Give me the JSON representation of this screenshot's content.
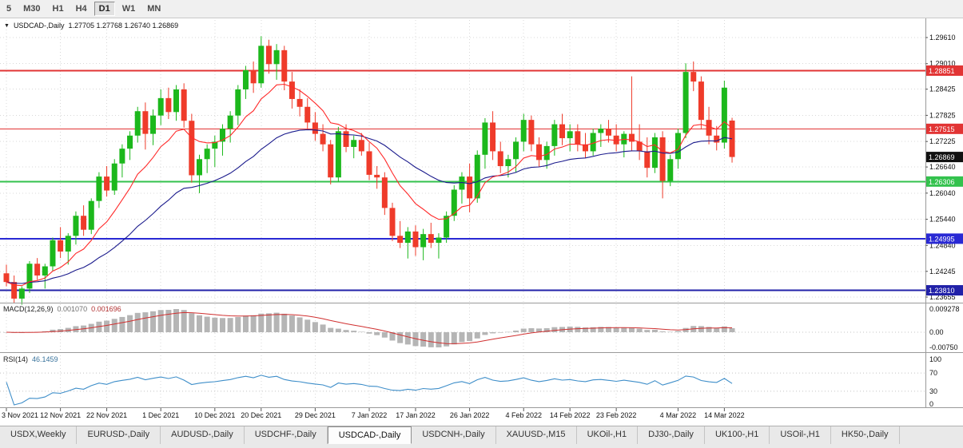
{
  "toolbar": {
    "timeframes": [
      {
        "label": "5",
        "active": false
      },
      {
        "label": "M30",
        "active": false
      },
      {
        "label": "H1",
        "active": false
      },
      {
        "label": "H4",
        "active": false
      },
      {
        "label": "D1",
        "active": true
      },
      {
        "label": "W1",
        "active": false
      },
      {
        "label": "MN",
        "active": false
      }
    ]
  },
  "chart": {
    "title": "USDCAD-,Daily",
    "ohlc_text": "1.27705 1.27768 1.26740 1.26869",
    "hlines": [
      {
        "label": "1.28851",
        "price": 1.28851,
        "color": "#e23434",
        "width": 2
      },
      {
        "label": "1.27515",
        "price": 1.27515,
        "color": "#e23434",
        "width": 1
      },
      {
        "label": "1.26306",
        "price": 1.26306,
        "color": "#33c24d",
        "width": 2
      },
      {
        "label": "1.24995",
        "price": 1.24995,
        "color": "#2929d4",
        "width": 2
      },
      {
        "label": "1.23810",
        "price": 1.2381,
        "color": "#2121a8",
        "width": 2
      }
    ],
    "current_price": {
      "label": "1.26869",
      "price": 1.26869,
      "color": "#111111"
    }
  },
  "macd": {
    "label": "MACD(12,26,9)",
    "value_main": "0.001070",
    "value_signal": "0.001696",
    "axis_max": "0.009278",
    "axis_zero": "0.00",
    "axis_min": "-0.00750"
  },
  "rsi": {
    "label": "RSI(14)",
    "value": "46.1459",
    "axis": [
      "100",
      "70",
      "30",
      "0"
    ],
    "levels": [
      70,
      30
    ]
  },
  "tabs": [
    {
      "label": "USDX,Weekly",
      "active": false
    },
    {
      "label": "EURUSD-,Daily",
      "active": false
    },
    {
      "label": "AUDUSD-,Daily",
      "active": false
    },
    {
      "label": "USDCHF-,Daily",
      "active": false
    },
    {
      "label": "USDCAD-,Daily",
      "active": true
    },
    {
      "label": "USDCNH-,Daily",
      "active": false
    },
    {
      "label": "XAUUSD-,M15",
      "active": false
    },
    {
      "label": "UKOil-,H1",
      "active": false
    },
    {
      "label": "DJ30-,Daily",
      "active": false
    },
    {
      "label": "UK100-,H1",
      "active": false
    },
    {
      "label": "USOil-,H1",
      "active": false
    },
    {
      "label": "HK50-,Daily",
      "active": false
    }
  ],
  "chart_data": {
    "type": "candlestick",
    "symbol": "USDCAD-",
    "timeframe": "Daily",
    "title": "USDCAD-,Daily",
    "last_ohlc": {
      "open": 1.27705,
      "high": 1.27768,
      "low": 1.2674,
      "close": 1.26869
    },
    "y_range": [
      1.23655,
      1.2961
    ],
    "y_axis_ticks": [
      "1.29610",
      "1.29010",
      "1.28425",
      "1.27825",
      "1.27225",
      "1.26640",
      "1.26040",
      "1.25440",
      "1.24840",
      "1.24245",
      "1.23655"
    ],
    "x_axis_ticks": [
      {
        "label": "3 Nov 2021",
        "i": 0
      },
      {
        "label": "12 Nov 2021",
        "i": 7
      },
      {
        "label": "22 Nov 2021",
        "i": 13
      },
      {
        "label": "1 Dec 2021",
        "i": 20
      },
      {
        "label": "10 Dec 2021",
        "i": 27
      },
      {
        "label": "20 Dec 2021",
        "i": 33
      },
      {
        "label": "29 Dec 2021",
        "i": 40
      },
      {
        "label": "7 Jan 2022",
        "i": 47
      },
      {
        "label": "17 Jan 2022",
        "i": 53
      },
      {
        "label": "26 Jan 2022",
        "i": 60
      },
      {
        "label": "4 Feb 2022",
        "i": 67
      },
      {
        "label": "14 Feb 2022",
        "i": 73
      },
      {
        "label": "23 Feb 2022",
        "i": 79
      },
      {
        "label": "4 Mar 2022",
        "i": 87
      },
      {
        "label": "14 Mar 2022",
        "i": 93
      }
    ],
    "colors": {
      "up": "#1cb81c",
      "down": "#ef3b2a",
      "ma_fast": "#ff2a2a",
      "ma_slow": "#1a1a8c",
      "macd_hist": "#b5b5b5",
      "macd_signal": "#d03030",
      "rsi": "#3e8ec9",
      "grid": "#d8d8d8"
    },
    "ma_periods": [
      10,
      30
    ],
    "macd_params": [
      12,
      26,
      9
    ],
    "rsi_period": 14,
    "candles": [
      [
        1.242,
        1.244,
        1.239,
        1.24
      ],
      [
        1.24,
        1.2415,
        1.2352,
        1.2362
      ],
      [
        1.2362,
        1.239,
        1.2348,
        1.2385
      ],
      [
        1.2385,
        1.2448,
        1.2375,
        1.2442
      ],
      [
        1.2442,
        1.2455,
        1.2405,
        1.2415
      ],
      [
        1.2415,
        1.2442,
        1.2385,
        1.2436
      ],
      [
        1.2436,
        1.2502,
        1.2425,
        1.2496
      ],
      [
        1.2496,
        1.2526,
        1.2455,
        1.247
      ],
      [
        1.247,
        1.2512,
        1.244,
        1.2506
      ],
      [
        1.2506,
        1.2562,
        1.2486,
        1.2552
      ],
      [
        1.2552,
        1.2576,
        1.2506,
        1.252
      ],
      [
        1.252,
        1.2592,
        1.251,
        1.2586
      ],
      [
        1.2586,
        1.2652,
        1.257,
        1.2642
      ],
      [
        1.2642,
        1.2666,
        1.2596,
        1.261
      ],
      [
        1.261,
        1.2682,
        1.26,
        1.2672
      ],
      [
        1.2672,
        1.2716,
        1.264,
        1.2706
      ],
      [
        1.2706,
        1.2746,
        1.268,
        1.2736
      ],
      [
        1.2736,
        1.2802,
        1.272,
        1.2792
      ],
      [
        1.2792,
        1.2812,
        1.2704,
        1.274
      ],
      [
        1.274,
        1.2796,
        1.2714,
        1.2782
      ],
      [
        1.2782,
        1.2842,
        1.276,
        1.2822
      ],
      [
        1.2822,
        1.2846,
        1.2774,
        1.279
      ],
      [
        1.279,
        1.2852,
        1.277,
        1.2842
      ],
      [
        1.2842,
        1.2856,
        1.2754,
        1.277
      ],
      [
        1.277,
        1.2786,
        1.2628,
        1.2645
      ],
      [
        1.2645,
        1.2692,
        1.2604,
        1.2682
      ],
      [
        1.2682,
        1.2716,
        1.265,
        1.2706
      ],
      [
        1.2706,
        1.2736,
        1.2664,
        1.2722
      ],
      [
        1.2722,
        1.2762,
        1.269,
        1.2752
      ],
      [
        1.2752,
        1.2792,
        1.272,
        1.2782
      ],
      [
        1.2782,
        1.2852,
        1.276,
        1.2842
      ],
      [
        1.2842,
        1.2896,
        1.282,
        1.2886
      ],
      [
        1.2886,
        1.2906,
        1.2834,
        1.2856
      ],
      [
        1.2856,
        1.2964,
        1.2846,
        1.2942
      ],
      [
        1.2942,
        1.2956,
        1.2878,
        1.29
      ],
      [
        1.29,
        1.2946,
        1.2864,
        1.2932
      ],
      [
        1.2932,
        1.2942,
        1.284,
        1.286
      ],
      [
        1.286,
        1.2882,
        1.2798,
        1.282
      ],
      [
        1.282,
        1.2842,
        1.278,
        1.2802
      ],
      [
        1.2802,
        1.2822,
        1.275,
        1.2766
      ],
      [
        1.2766,
        1.279,
        1.2724,
        1.274
      ],
      [
        1.274,
        1.2762,
        1.27,
        1.2716
      ],
      [
        1.2716,
        1.2726,
        1.2624,
        1.264
      ],
      [
        1.264,
        1.2756,
        1.263,
        1.2746
      ],
      [
        1.2746,
        1.2762,
        1.2698,
        1.271
      ],
      [
        1.271,
        1.2736,
        1.2684,
        1.2726
      ],
      [
        1.2726,
        1.2742,
        1.269,
        1.27
      ],
      [
        1.27,
        1.272,
        1.2634,
        1.2646
      ],
      [
        1.2646,
        1.2666,
        1.2614,
        1.264
      ],
      [
        1.264,
        1.2652,
        1.2554,
        1.257
      ],
      [
        1.257,
        1.2582,
        1.2494,
        1.2506
      ],
      [
        1.2506,
        1.254,
        1.2478,
        1.249
      ],
      [
        1.249,
        1.2526,
        1.2454,
        1.2516
      ],
      [
        1.2516,
        1.253,
        1.246,
        1.248
      ],
      [
        1.248,
        1.2522,
        1.245,
        1.251
      ],
      [
        1.251,
        1.2536,
        1.2478,
        1.249
      ],
      [
        1.249,
        1.2512,
        1.2454,
        1.2502
      ],
      [
        1.2502,
        1.2562,
        1.249,
        1.2552
      ],
      [
        1.2552,
        1.2622,
        1.254,
        1.2612
      ],
      [
        1.2612,
        1.2652,
        1.258,
        1.2642
      ],
      [
        1.2642,
        1.2672,
        1.256,
        1.2592
      ],
      [
        1.2592,
        1.2702,
        1.2582,
        1.2692
      ],
      [
        1.2692,
        1.2776,
        1.266,
        1.2766
      ],
      [
        1.2766,
        1.2792,
        1.268,
        1.27
      ],
      [
        1.27,
        1.2722,
        1.265,
        1.2666
      ],
      [
        1.2666,
        1.2692,
        1.264,
        1.2682
      ],
      [
        1.2682,
        1.2732,
        1.2652,
        1.2722
      ],
      [
        1.2722,
        1.2786,
        1.27,
        1.2772
      ],
      [
        1.2772,
        1.2782,
        1.27,
        1.2716
      ],
      [
        1.2716,
        1.2732,
        1.2664,
        1.268
      ],
      [
        1.268,
        1.2722,
        1.266,
        1.2712
      ],
      [
        1.2712,
        1.2772,
        1.269,
        1.2762
      ],
      [
        1.2762,
        1.2786,
        1.2714,
        1.273
      ],
      [
        1.273,
        1.2762,
        1.27,
        1.2746
      ],
      [
        1.2746,
        1.2762,
        1.27,
        1.2716
      ],
      [
        1.2716,
        1.2742,
        1.2684,
        1.27
      ],
      [
        1.27,
        1.2752,
        1.269,
        1.2742
      ],
      [
        1.2742,
        1.2762,
        1.271,
        1.2752
      ],
      [
        1.2752,
        1.2772,
        1.272,
        1.2736
      ],
      [
        1.2736,
        1.2762,
        1.27,
        1.2716
      ],
      [
        1.2716,
        1.2746,
        1.2686,
        1.274
      ],
      [
        1.274,
        1.2872,
        1.27,
        1.2722
      ],
      [
        1.2722,
        1.2762,
        1.268,
        1.27
      ],
      [
        1.27,
        1.2732,
        1.264,
        1.2662
      ],
      [
        1.2662,
        1.2742,
        1.265,
        1.2732
      ],
      [
        1.2732,
        1.2746,
        1.2592,
        1.2632
      ],
      [
        1.2632,
        1.2692,
        1.262,
        1.2682
      ],
      [
        1.2682,
        1.2752,
        1.266,
        1.2742
      ],
      [
        1.2742,
        1.2902,
        1.273,
        1.2882
      ],
      [
        1.2882,
        1.2906,
        1.2838,
        1.286
      ],
      [
        1.286,
        1.2872,
        1.275,
        1.2772
      ],
      [
        1.2772,
        1.2802,
        1.2716,
        1.2736
      ],
      [
        1.2736,
        1.2758,
        1.2702,
        1.272
      ],
      [
        1.272,
        1.2862,
        1.2706,
        1.2846
      ],
      [
        1.27705,
        1.27768,
        1.2674,
        1.26869
      ]
    ]
  }
}
